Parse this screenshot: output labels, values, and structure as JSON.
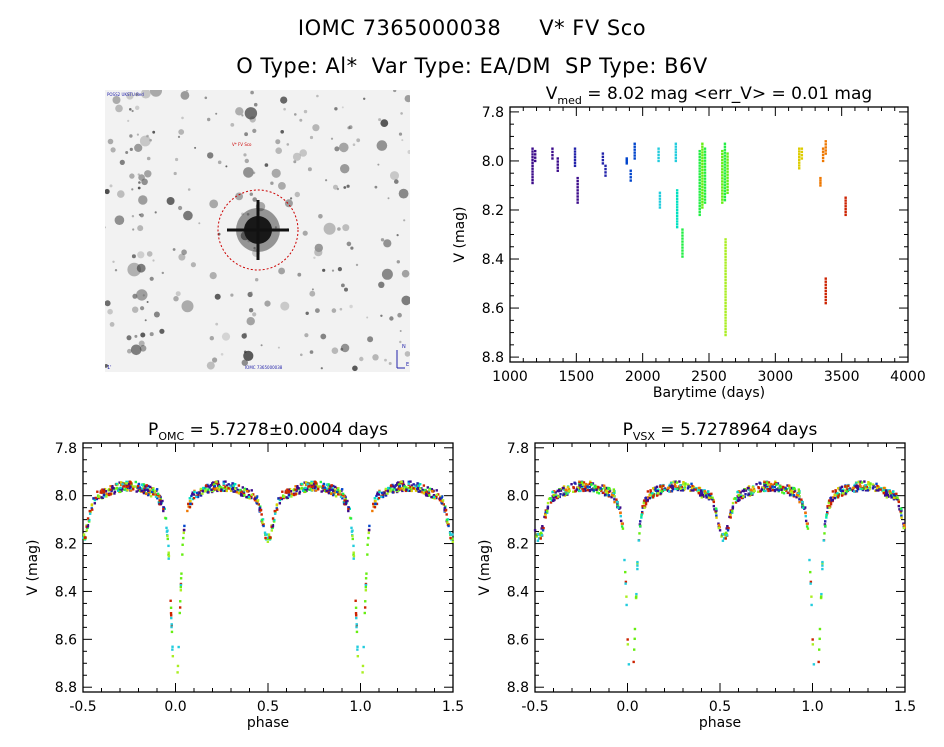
{
  "header": {
    "source_id": "IOMC 7365000038",
    "star_name": "V* FV Sco",
    "o_type": "O Type: Al*",
    "var_type": "Var Type: EA/DM",
    "sp_type": "SP Type: B6V"
  },
  "sky_image": {
    "top_left_tag": "POSS2 UKSTU Red",
    "marker_label": "V* FV Sco",
    "bottom_left_tag": "1'",
    "bottom_center_tag": "IOMC 7365000038",
    "compass_n": "N",
    "compass_e": "E"
  },
  "colors": {
    "marker": "#cc0000",
    "axis": "#000000",
    "sky_bg": "#f2f2f2",
    "timeline": [
      "#3b0a8a",
      "#2222aa",
      "#0044cc",
      "#22ccdd",
      "#00e0c0",
      "#22ee44",
      "#66ee11",
      "#aaee22",
      "#ddcc00",
      "#ee7700",
      "#cc2200"
    ]
  },
  "chart_data": [
    {
      "type": "scatter",
      "title_parts": [
        "V",
        "med",
        " = 8.02 mag <err_V> = 0.01 mag"
      ],
      "xlabel": "Barytime (days)",
      "ylabel": "V (mag)",
      "xlim": [
        1000,
        4000
      ],
      "ylim": [
        8.82,
        7.78
      ],
      "y_inverted": true,
      "xticks": [
        "1000",
        "1500",
        "2000",
        "2500",
        "3000",
        "3500",
        "4000"
      ],
      "yticks": [
        "7.8",
        "8.0",
        "8.2",
        "8.4",
        "8.6",
        "8.8"
      ],
      "groups": [
        {
          "x": 1170,
          "ymin": 7.95,
          "ymax": 8.09,
          "color_index": 0
        },
        {
          "x": 1190,
          "ymin": 7.96,
          "ymax": 8.0,
          "color_index": 0
        },
        {
          "x": 1320,
          "ymin": 7.95,
          "ymax": 7.99,
          "color_index": 0
        },
        {
          "x": 1360,
          "ymin": 7.99,
          "ymax": 8.04,
          "color_index": 0
        },
        {
          "x": 1490,
          "ymin": 7.95,
          "ymax": 8.02,
          "color_index": 1
        },
        {
          "x": 1510,
          "ymin": 8.07,
          "ymax": 8.17,
          "color_index": 0
        },
        {
          "x": 1700,
          "ymin": 7.97,
          "ymax": 8.01,
          "color_index": 1
        },
        {
          "x": 1720,
          "ymin": 8.02,
          "ymax": 8.06,
          "color_index": 1
        },
        {
          "x": 1880,
          "ymin": 7.99,
          "ymax": 8.01,
          "color_index": 2
        },
        {
          "x": 1910,
          "ymin": 8.04,
          "ymax": 8.08,
          "color_index": 2
        },
        {
          "x": 1940,
          "ymin": 7.93,
          "ymax": 7.99,
          "color_index": 2
        },
        {
          "x": 2120,
          "ymin": 7.95,
          "ymax": 8.0,
          "color_index": 3
        },
        {
          "x": 2130,
          "ymin": 8.13,
          "ymax": 8.19,
          "color_index": 3
        },
        {
          "x": 2250,
          "ymin": 7.93,
          "ymax": 8.0,
          "color_index": 3
        },
        {
          "x": 2260,
          "ymin": 8.12,
          "ymax": 8.27,
          "color_index": 4
        },
        {
          "x": 2300,
          "ymin": 8.28,
          "ymax": 8.39,
          "color_index": 5
        },
        {
          "x": 2430,
          "ymin": 7.96,
          "ymax": 8.22,
          "color_index": 5
        },
        {
          "x": 2450,
          "ymin": 7.93,
          "ymax": 8.19,
          "color_index": 6
        },
        {
          "x": 2470,
          "ymin": 7.95,
          "ymax": 8.17,
          "color_index": 5
        },
        {
          "x": 2600,
          "ymin": 7.96,
          "ymax": 8.17,
          "color_index": 6
        },
        {
          "x": 2620,
          "ymin": 7.93,
          "ymax": 8.16,
          "color_index": 5
        },
        {
          "x": 2625,
          "ymin": 8.32,
          "ymax": 8.71,
          "color_index": 7
        },
        {
          "x": 2640,
          "ymin": 7.97,
          "ymax": 8.13,
          "color_index": 6
        },
        {
          "x": 3180,
          "ymin": 7.95,
          "ymax": 8.03,
          "color_index": 8
        },
        {
          "x": 3200,
          "ymin": 7.95,
          "ymax": 7.99,
          "color_index": 8
        },
        {
          "x": 3340,
          "ymin": 8.07,
          "ymax": 8.1,
          "color_index": 9
        },
        {
          "x": 3360,
          "ymin": 7.95,
          "ymax": 8.0,
          "color_index": 9
        },
        {
          "x": 3380,
          "ymin": 7.92,
          "ymax": 7.97,
          "color_index": 9
        },
        {
          "x": 3380,
          "ymin": 8.48,
          "ymax": 8.58,
          "color_index": 10
        },
        {
          "x": 3530,
          "ymin": 8.15,
          "ymax": 8.22,
          "color_index": 10
        }
      ]
    },
    {
      "type": "scatter",
      "title_parts": [
        "P",
        "OMC",
        " = 5.7278±0.0004 days"
      ],
      "xlabel": "phase",
      "ylabel": "V (mag)",
      "xlim": [
        -0.5,
        1.5
      ],
      "ylim": [
        8.82,
        7.78
      ],
      "y_inverted": true,
      "xticks": [
        "-0.5",
        "0.0",
        "0.5",
        "1.0",
        "1.5"
      ],
      "yticks": [
        "7.8",
        "8.0",
        "8.2",
        "8.4",
        "8.6",
        "8.8"
      ],
      "phase_offset": 0.0
    },
    {
      "type": "scatter",
      "title_parts": [
        "P",
        "VSX",
        " = 5.7278964 days"
      ],
      "xlabel": "phase",
      "ylabel": "V (mag)",
      "xlim": [
        -0.5,
        1.5
      ],
      "ylim": [
        8.82,
        7.78
      ],
      "y_inverted": true,
      "xticks": [
        "-0.5",
        "0.0",
        "0.5",
        "1.0",
        "1.5"
      ],
      "yticks": [
        "7.8",
        "8.0",
        "8.2",
        "8.4",
        "8.6",
        "8.8"
      ],
      "phase_offset": 0.02
    }
  ]
}
